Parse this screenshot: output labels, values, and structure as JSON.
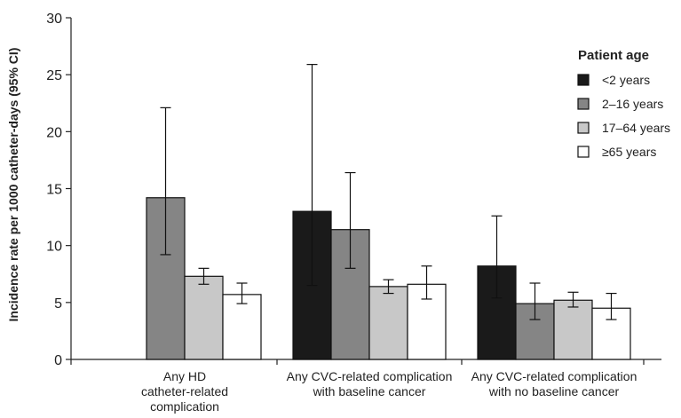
{
  "chart_data": {
    "type": "bar",
    "title": "",
    "xlabel": "",
    "ylabel": "Incidence rate per 1000 catheter-days (95% CI)",
    "ylim": [
      0,
      30
    ],
    "yticks": [
      "0",
      "5",
      "10",
      "15",
      "20",
      "25",
      "30"
    ],
    "categories": [
      [
        "Any HD",
        "catheter-related",
        "complication"
      ],
      [
        "Any CVC-related complication",
        "with baseline cancer"
      ],
      [
        "Any CVC-related complication",
        "with no baseline cancer"
      ]
    ],
    "legend": {
      "title": "Patient age",
      "position": "top-right"
    },
    "series": [
      {
        "name": "<2 years",
        "color": "#1a1a1a",
        "values": [
          null,
          13.0,
          8.2
        ],
        "ci_low": [
          null,
          6.5,
          5.4
        ],
        "ci_high": [
          null,
          25.9,
          12.6
        ]
      },
      {
        "name": "2–16 years",
        "color": "#858585",
        "values": [
          14.2,
          11.4,
          4.9
        ],
        "ci_low": [
          9.2,
          8.0,
          3.5
        ],
        "ci_high": [
          22.1,
          16.4,
          6.7
        ]
      },
      {
        "name": "17–64 years",
        "color": "#c8c8c8",
        "values": [
          7.3,
          6.4,
          5.2
        ],
        "ci_low": [
          6.6,
          5.8,
          4.6
        ],
        "ci_high": [
          8.0,
          7.0,
          5.9
        ]
      },
      {
        "name": "≥65 years",
        "color": "#ffffff",
        "values": [
          5.7,
          6.6,
          4.5
        ],
        "ci_low": [
          4.9,
          5.3,
          3.5
        ],
        "ci_high": [
          6.7,
          8.2,
          5.8
        ]
      }
    ],
    "grid": false
  }
}
